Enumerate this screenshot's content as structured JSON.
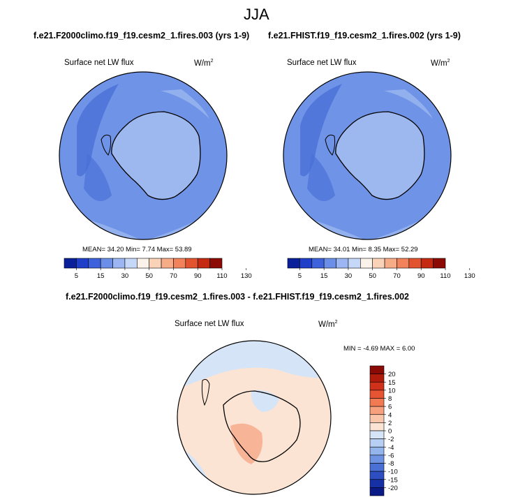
{
  "figure": {
    "title": "JJA"
  },
  "panels": [
    {
      "case_title": "f.e21.F2000climo.f19_f19.cesm2_1.fires.003 (yrs 1-9)",
      "variable": "Surface net LW flux",
      "units": "W/m",
      "units_exp": "2",
      "stats": {
        "mean": "34.20",
        "min": "7.74",
        "max": "53.89"
      },
      "stats_text": "MEAN=  34.20  Min=   7.74  Max=  53.89"
    },
    {
      "case_title": "f.e21.FHIST.f19_f19.cesm2_1.fires.002 (yrs 1-9)",
      "variable": "Surface net LW flux",
      "units": "W/m",
      "units_exp": "2",
      "stats": {
        "mean": "34.01",
        "min": "8.35",
        "max": "52.29"
      },
      "stats_text": "MEAN=  34.01  Min=   8.35  Max=  52.29"
    }
  ],
  "main_colorbar": {
    "levels": [
      "5",
      "15",
      "30",
      "50",
      "70",
      "90",
      "110",
      "130"
    ],
    "colors": [
      "#0a1f9a",
      "#1f3fc8",
      "#3e62dc",
      "#6b8ee8",
      "#9bb6f2",
      "#c6d8f8",
      "#fbf3ea",
      "#fad2b8",
      "#f7ac88",
      "#f2825a",
      "#e2542f",
      "#c42a12",
      "#8c0a04"
    ]
  },
  "diff_panel": {
    "title": "f.e21.F2000climo.f19_f19.cesm2_1.fires.003 - f.e21.FHIST.f19_f19.cesm2_1.fires.002",
    "variable": "Surface net LW flux",
    "units": "W/m",
    "units_exp": "2",
    "stats": {
      "min": "-4.69",
      "max": "6.00"
    },
    "stats_text": "MIN =  -4.69  MAX =   6.00"
  },
  "diff_colorbar": {
    "labels": [
      "20",
      "15",
      "10",
      "8",
      "6",
      "4",
      "2",
      "0",
      "-2",
      "-4",
      "-6",
      "-8",
      "-10",
      "-15",
      "-20"
    ],
    "colors": [
      "#8a0b05",
      "#b01c0c",
      "#d0311a",
      "#e65431",
      "#f27a53",
      "#f6a07e",
      "#f9c6ab",
      "#fbe4d3",
      "#d5e4f7",
      "#b7cff2",
      "#94b4ec",
      "#6e93e2",
      "#4a70d5",
      "#2d4fc2",
      "#1630a5",
      "#0a1a86"
    ]
  },
  "colors": {
    "land_main": "#9db8ef",
    "ocean_main": "#6f93e6",
    "ocean_dark": "#4a70d8",
    "diff_pos": "#fbe4d3",
    "diff_neg": "#d5e4f7",
    "coast": "#000000"
  }
}
